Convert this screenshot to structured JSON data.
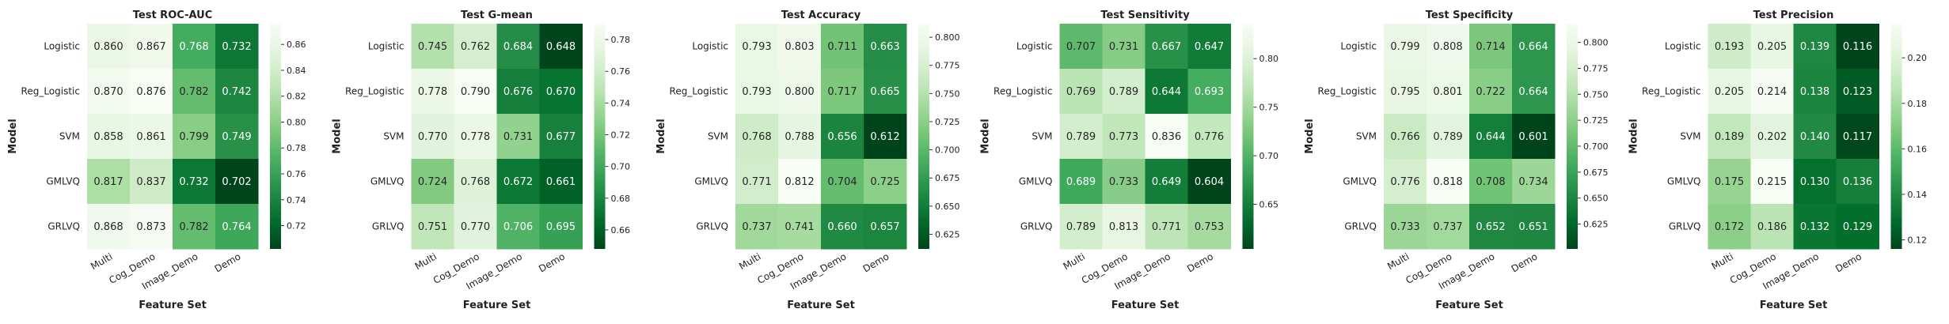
{
  "chart_data": [
    {
      "type": "heatmap",
      "title": "Test ROC-AUC",
      "xlabel": "Feature Set",
      "ylabel": "Model",
      "x_categories": [
        "Multi",
        "Cog_Demo",
        "Image_Demo",
        "Demo"
      ],
      "y_categories": [
        "Logistic",
        "Reg_Logistic",
        "SVM",
        "GMLVQ",
        "GRLVQ"
      ],
      "values": [
        [
          0.86,
          0.867,
          0.768,
          0.732
        ],
        [
          0.87,
          0.876,
          0.782,
          0.742
        ],
        [
          0.858,
          0.861,
          0.799,
          0.749
        ],
        [
          0.817,
          0.837,
          0.732,
          0.702
        ],
        [
          0.868,
          0.873,
          0.782,
          0.764
        ]
      ],
      "vmin": 0.702,
      "vmax": 0.876,
      "colorbar_ticks": [
        "0.72",
        "0.74",
        "0.76",
        "0.78",
        "0.80",
        "0.82",
        "0.84",
        "0.86"
      ],
      "colormap": "Greens_r"
    },
    {
      "type": "heatmap",
      "title": "Test G-mean",
      "xlabel": "Feature Set",
      "ylabel": "Model",
      "x_categories": [
        "Multi",
        "Cog_Demo",
        "Image_Demo",
        "Demo"
      ],
      "y_categories": [
        "Logistic",
        "Reg_Logistic",
        "SVM",
        "GMLVQ",
        "GRLVQ"
      ],
      "values": [
        [
          0.745,
          0.762,
          0.684,
          0.648
        ],
        [
          0.778,
          0.79,
          0.676,
          0.67
        ],
        [
          0.77,
          0.778,
          0.731,
          0.677
        ],
        [
          0.724,
          0.768,
          0.672,
          0.661
        ],
        [
          0.751,
          0.77,
          0.706,
          0.695
        ]
      ],
      "vmin": 0.648,
      "vmax": 0.79,
      "colorbar_ticks": [
        "0.66",
        "0.68",
        "0.70",
        "0.72",
        "0.74",
        "0.76",
        "0.78"
      ],
      "colormap": "Greens_r"
    },
    {
      "type": "heatmap",
      "title": "Test Accuracy",
      "xlabel": "Feature Set",
      "ylabel": "Model",
      "x_categories": [
        "Multi",
        "Cog_Demo",
        "Image_Demo",
        "Demo"
      ],
      "y_categories": [
        "Logistic",
        "Reg_Logistic",
        "SVM",
        "GMLVQ",
        "GRLVQ"
      ],
      "values": [
        [
          0.793,
          0.803,
          0.711,
          0.663
        ],
        [
          0.793,
          0.8,
          0.717,
          0.665
        ],
        [
          0.768,
          0.788,
          0.656,
          0.612
        ],
        [
          0.771,
          0.812,
          0.704,
          0.725
        ],
        [
          0.737,
          0.741,
          0.66,
          0.657
        ]
      ],
      "vmin": 0.612,
      "vmax": 0.812,
      "colorbar_ticks": [
        "0.625",
        "0.650",
        "0.675",
        "0.700",
        "0.725",
        "0.750",
        "0.775",
        "0.800"
      ],
      "colormap": "Greens_r"
    },
    {
      "type": "heatmap",
      "title": "Test Sensitivity",
      "xlabel": "Feature Set",
      "ylabel": "Model",
      "x_categories": [
        "Multi",
        "Cog_Demo",
        "Image_Demo",
        "Demo"
      ],
      "y_categories": [
        "Logistic",
        "Reg_Logistic",
        "SVM",
        "GMLVQ",
        "GRLVQ"
      ],
      "values": [
        [
          0.707,
          0.731,
          0.667,
          0.647
        ],
        [
          0.769,
          0.789,
          0.644,
          0.693
        ],
        [
          0.789,
          0.773,
          0.836,
          0.776
        ],
        [
          0.689,
          0.733,
          0.649,
          0.604
        ],
        [
          0.789,
          0.813,
          0.771,
          0.753
        ]
      ],
      "vmin": 0.604,
      "vmax": 0.836,
      "colorbar_ticks": [
        "0.65",
        "0.70",
        "0.75",
        "0.80"
      ],
      "colormap": "Greens_r"
    },
    {
      "type": "heatmap",
      "title": "Test Specificity",
      "xlabel": "Feature Set",
      "ylabel": "Model",
      "x_categories": [
        "Multi",
        "Cog_Demo",
        "Image_Demo",
        "Demo"
      ],
      "y_categories": [
        "Logistic",
        "Reg_Logistic",
        "SVM",
        "GMLVQ",
        "GRLVQ"
      ],
      "values": [
        [
          0.799,
          0.808,
          0.714,
          0.664
        ],
        [
          0.795,
          0.801,
          0.722,
          0.664
        ],
        [
          0.766,
          0.789,
          0.644,
          0.601
        ],
        [
          0.776,
          0.818,
          0.708,
          0.734
        ],
        [
          0.733,
          0.737,
          0.652,
          0.651
        ]
      ],
      "vmin": 0.601,
      "vmax": 0.818,
      "colorbar_ticks": [
        "0.625",
        "0.650",
        "0.675",
        "0.700",
        "0.725",
        "0.750",
        "0.775",
        "0.800"
      ],
      "colormap": "Greens_r"
    },
    {
      "type": "heatmap",
      "title": "Test Precision",
      "xlabel": "Feature Set",
      "ylabel": "Model",
      "x_categories": [
        "Multi",
        "Cog_Demo",
        "Image_Demo",
        "Demo"
      ],
      "y_categories": [
        "Logistic",
        "Reg_Logistic",
        "SVM",
        "GMLVQ",
        "GRLVQ"
      ],
      "values": [
        [
          0.193,
          0.205,
          0.139,
          0.116
        ],
        [
          0.205,
          0.214,
          0.138,
          0.123
        ],
        [
          0.189,
          0.202,
          0.14,
          0.117
        ],
        [
          0.175,
          0.215,
          0.13,
          0.136
        ],
        [
          0.172,
          0.186,
          0.132,
          0.129
        ]
      ],
      "vmin": 0.116,
      "vmax": 0.215,
      "colorbar_ticks": [
        "0.12",
        "0.14",
        "0.16",
        "0.18",
        "0.20"
      ],
      "colormap": "Greens_r"
    }
  ]
}
